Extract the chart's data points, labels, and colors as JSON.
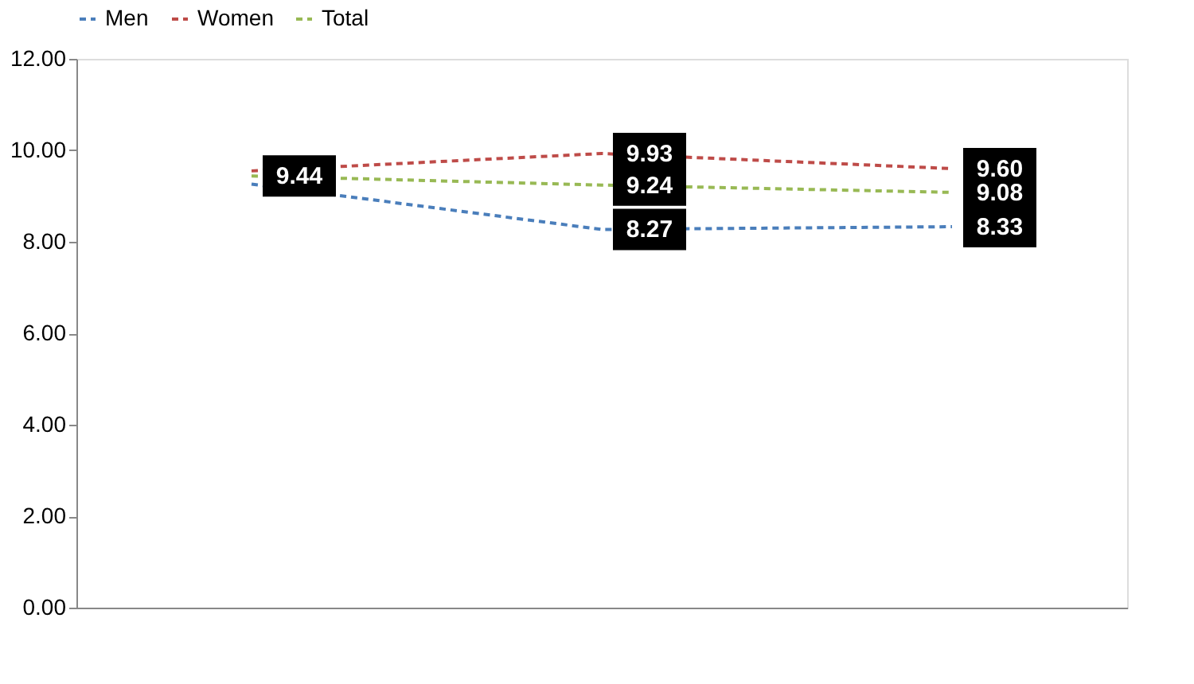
{
  "chart_data": {
    "type": "line",
    "categories": [
      null,
      null,
      null
    ],
    "series": [
      {
        "name": "Men",
        "color": "#4a7ebb",
        "values": [
          9.26,
          8.27,
          8.33
        ],
        "value_labels": [
          null,
          "8.27",
          "8.33"
        ]
      },
      {
        "name": "Women",
        "color": "#be4b48",
        "values": [
          9.55,
          9.93,
          9.6
        ],
        "value_labels": [
          null,
          "9.93",
          "9.60"
        ]
      },
      {
        "name": "Total",
        "color": "#98b954",
        "values": [
          9.44,
          9.24,
          9.08
        ],
        "value_labels": [
          "9.44",
          "9.24",
          "9.08"
        ]
      }
    ],
    "ylim": [
      0,
      12
    ],
    "yticks": [
      {
        "value": 0,
        "label": "0.00"
      },
      {
        "value": 2,
        "label": "2.00"
      },
      {
        "value": 4,
        "label": "4.00"
      },
      {
        "value": 6,
        "label": "6.00"
      },
      {
        "value": 8,
        "label": "8.00"
      },
      {
        "value": 10,
        "label": "10.00"
      },
      {
        "value": 12,
        "label": "12.00"
      }
    ],
    "grid": false,
    "legend": "top",
    "line_style": "dashed",
    "tick_labels": "y"
  }
}
